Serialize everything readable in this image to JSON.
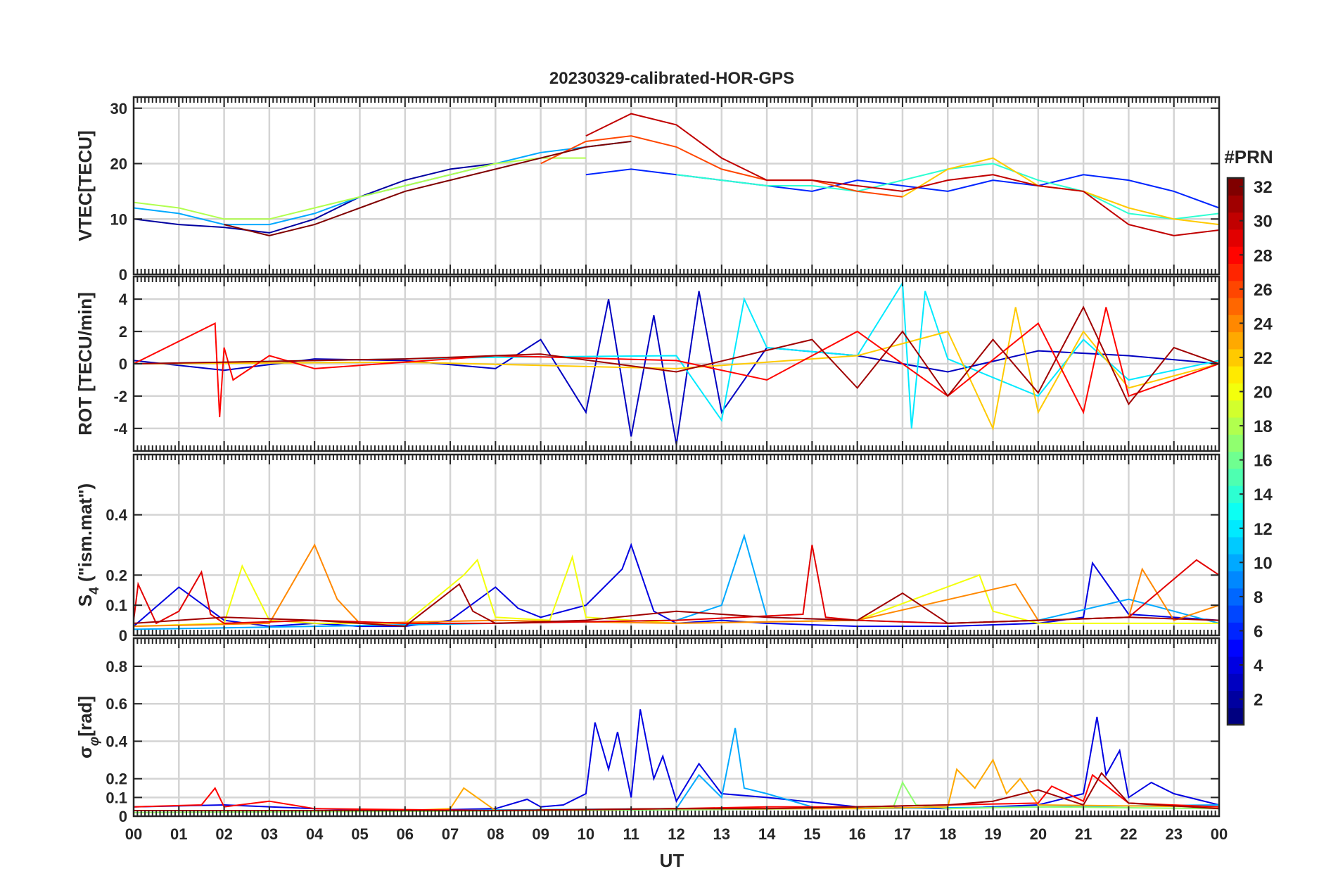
{
  "chart_data": {
    "type": "line",
    "title": "20230329-calibrated-HOR-GPS",
    "xlabel": "UT",
    "x_ticks": [
      "00",
      "01",
      "02",
      "03",
      "04",
      "05",
      "06",
      "07",
      "08",
      "09",
      "10",
      "11",
      "12",
      "13",
      "14",
      "15",
      "16",
      "17",
      "18",
      "19",
      "20",
      "21",
      "22",
      "23",
      "00"
    ],
    "xlim": [
      0,
      24
    ],
    "colorbar": {
      "label": "#PRN",
      "ticks": [
        "2",
        "4",
        "6",
        "8",
        "10",
        "12",
        "14",
        "16",
        "18",
        "20",
        "22",
        "24",
        "26",
        "28",
        "30",
        "32"
      ],
      "range": [
        1,
        32
      ],
      "colormap": "jet"
    },
    "panels": [
      {
        "id": "vtec",
        "ylabel": "VTEC[TECU]",
        "ylim": [
          0,
          32
        ],
        "y_ticks": [
          0,
          10,
          20,
          30
        ],
        "y_tick_labels": [
          "0",
          "10",
          "20",
          "30"
        ],
        "series": [
          {
            "prn": 2,
            "x": [
              0,
              1,
              2,
              3,
              4,
              5,
              6,
              7,
              8
            ],
            "y": [
              10,
              9,
              8.5,
              7.5,
              10,
              14,
              17,
              19,
              20
            ]
          },
          {
            "prn": 6,
            "x": [
              10,
              11,
              12,
              13,
              14,
              15,
              16,
              17,
              18,
              19,
              20,
              21,
              22,
              23,
              24
            ],
            "y": [
              18,
              19,
              18,
              17,
              16,
              15,
              17,
              16,
              15,
              17,
              16,
              18,
              17,
              15,
              12
            ]
          },
          {
            "prn": 10,
            "x": [
              0,
              1,
              2,
              3,
              4,
              5,
              6,
              7,
              8,
              9,
              10,
              11
            ],
            "y": [
              12,
              11,
              9,
              9,
              11,
              14,
              16,
              18,
              20,
              22,
              23,
              24
            ]
          },
          {
            "prn": 14,
            "x": [
              12,
              13,
              14,
              15,
              16,
              17,
              18,
              19,
              20,
              21,
              22,
              23,
              24
            ],
            "y": [
              18,
              17,
              16,
              16,
              15,
              17,
              19,
              20,
              17,
              15,
              11,
              10,
              11
            ]
          },
          {
            "prn": 18,
            "x": [
              0,
              1,
              2,
              3,
              4,
              5,
              6,
              7,
              8,
              9,
              10
            ],
            "y": [
              13,
              12,
              10,
              10,
              12,
              14,
              16,
              18,
              20,
              21,
              21
            ]
          },
          {
            "prn": 22,
            "x": [
              17,
              18,
              19,
              20,
              21,
              22,
              23,
              24
            ],
            "y": [
              14,
              19,
              21,
              16,
              15,
              12,
              10,
              9
            ]
          },
          {
            "prn": 26,
            "x": [
              9,
              10,
              11,
              12,
              13,
              14,
              15,
              16,
              17
            ],
            "y": [
              20,
              24,
              25,
              23,
              19,
              17,
              17,
              15,
              14
            ]
          },
          {
            "prn": 30,
            "x": [
              10,
              11,
              12,
              13,
              14,
              15,
              16,
              17,
              18,
              19,
              20,
              21,
              22,
              23,
              24
            ],
            "y": [
              25,
              29,
              27,
              21,
              17,
              17,
              16,
              15,
              17,
              18,
              16,
              15,
              9,
              7,
              8
            ]
          },
          {
            "prn": 32,
            "x": [
              2,
              3,
              4,
              5,
              6,
              7,
              8,
              9,
              10,
              11
            ],
            "y": [
              9,
              7,
              9,
              12,
              15,
              17,
              19,
              21,
              23,
              24
            ]
          }
        ]
      },
      {
        "id": "rot",
        "ylabel": "ROT [TECU/min]",
        "ylim": [
          -5.4,
          5.4
        ],
        "y_ticks": [
          -4,
          -2,
          0,
          2,
          4
        ],
        "y_tick_labels": [
          "-4",
          "-2",
          "0",
          "2",
          "4"
        ],
        "series": [
          {
            "prn": 3,
            "x": [
              0,
              2,
              4,
              6,
              8,
              9,
              10,
              10.5,
              11,
              11.5,
              12,
              12.5,
              13,
              14,
              16,
              18,
              20,
              22,
              24
            ],
            "y": [
              0.2,
              -0.4,
              0.3,
              0.2,
              -0.3,
              1.5,
              -3,
              4,
              -4.5,
              3,
              -5,
              4.5,
              -3,
              1,
              0.5,
              -0.5,
              0.8,
              0.5,
              0
            ]
          },
          {
            "prn": 12,
            "x": [
              0,
              4,
              8,
              12,
              13,
              13.5,
              14,
              16,
              17,
              17.2,
              17.5,
              18,
              20,
              21,
              22,
              24
            ],
            "y": [
              0,
              0.2,
              0.4,
              0.5,
              -3.5,
              4,
              1,
              0.5,
              5,
              -4,
              4.5,
              0.3,
              -2,
              1.5,
              -1,
              0.2
            ]
          },
          {
            "prn": 22,
            "x": [
              0,
              6,
              12,
              16,
              18,
              19,
              19.5,
              20,
              21,
              22,
              24
            ],
            "y": [
              0,
              0.1,
              -0.3,
              0.5,
              2,
              -4,
              3.5,
              -3,
              2,
              -1.5,
              0
            ]
          },
          {
            "prn": 28,
            "x": [
              0,
              1.8,
              1.9,
              2,
              2.2,
              3,
              4,
              8,
              12,
              14,
              16,
              18,
              20,
              21,
              21.5,
              22,
              24
            ],
            "y": [
              0,
              2.5,
              -3.3,
              1,
              -1,
              0.5,
              -0.3,
              0.5,
              0.2,
              -1,
              2,
              -2,
              2.5,
              -3,
              3.5,
              -2,
              0
            ]
          },
          {
            "prn": 31,
            "x": [
              0,
              6,
              9,
              12,
              15,
              16,
              17,
              18,
              19,
              20,
              21,
              22,
              23,
              24
            ],
            "y": [
              0,
              0.3,
              0.6,
              -0.5,
              1.5,
              -1.5,
              2,
              -2,
              1.5,
              -1.8,
              3.5,
              -2.5,
              1,
              0
            ]
          }
        ]
      },
      {
        "id": "s4",
        "ylabel": "S_4 (\"ism.mat\")",
        "ylabel_main": "S",
        "ylabel_sub": "4",
        "ylabel_rest": " (\"ism.mat\")",
        "ylim": [
          0,
          0.6
        ],
        "y_ticks": [
          0,
          0.1,
          0.2,
          0.4
        ],
        "y_tick_labels": [
          "0",
          "0.1",
          "0.2",
          "0.4"
        ],
        "series": [
          {
            "prn": 4,
            "x": [
              0,
              1,
              2,
              3,
              4,
              5,
              6,
              7,
              8,
              8.5,
              9,
              10,
              10.8,
              11,
              11.5,
              12,
              13,
              14,
              16,
              18,
              20,
              21,
              21.2,
              22,
              24
            ],
            "y": [
              0.03,
              0.16,
              0.05,
              0.03,
              0.04,
              0.03,
              0.03,
              0.05,
              0.16,
              0.09,
              0.06,
              0.1,
              0.22,
              0.3,
              0.08,
              0.04,
              0.05,
              0.04,
              0.03,
              0.03,
              0.04,
              0.06,
              0.24,
              0.07,
              0.05
            ]
          },
          {
            "prn": 10,
            "x": [
              0,
              4,
              8,
              12,
              13,
              13.5,
              14,
              16,
              18,
              20,
              22,
              23,
              24
            ],
            "y": [
              0.02,
              0.03,
              0.04,
              0.05,
              0.1,
              0.33,
              0.06,
              0.05,
              0.04,
              0.05,
              0.12,
              0.08,
              0.04
            ]
          },
          {
            "prn": 20,
            "x": [
              0,
              2,
              2.4,
              3,
              4,
              6,
              7.3,
              7.6,
              8,
              9.2,
              9.7,
              10,
              12,
              16,
              18.7,
              19,
              20,
              24
            ],
            "y": [
              0.03,
              0.04,
              0.23,
              0.05,
              0.04,
              0.04,
              0.2,
              0.25,
              0.06,
              0.05,
              0.26,
              0.06,
              0.04,
              0.05,
              0.2,
              0.08,
              0.04,
              0.04
            ]
          },
          {
            "prn": 24,
            "x": [
              0,
              3,
              4,
              4.5,
              5,
              8,
              12,
              16,
              19.5,
              20,
              22,
              22.3,
              23,
              24
            ],
            "y": [
              0.03,
              0.04,
              0.3,
              0.12,
              0.04,
              0.05,
              0.04,
              0.05,
              0.17,
              0.05,
              0.06,
              0.22,
              0.05,
              0.1
            ]
          },
          {
            "prn": 29,
            "x": [
              0,
              0.1,
              0.5,
              1,
              1.5,
              1.7,
              2,
              4,
              6,
              8,
              12,
              14.8,
              15,
              15.3,
              16,
              18,
              20,
              22,
              23.5,
              24
            ],
            "y": [
              0.05,
              0.17,
              0.04,
              0.08,
              0.21,
              0.07,
              0.04,
              0.05,
              0.04,
              0.04,
              0.05,
              0.07,
              0.3,
              0.06,
              0.05,
              0.04,
              0.05,
              0.06,
              0.25,
              0.2
            ]
          },
          {
            "prn": 31,
            "x": [
              0,
              2,
              4,
              6,
              7.2,
              7.5,
              8,
              10,
              12,
              14,
              16,
              17,
              18,
              20,
              22,
              24
            ],
            "y": [
              0.04,
              0.06,
              0.05,
              0.03,
              0.17,
              0.08,
              0.04,
              0.05,
              0.08,
              0.06,
              0.05,
              0.14,
              0.04,
              0.05,
              0.06,
              0.05
            ]
          }
        ]
      },
      {
        "id": "sigma",
        "ylabel": "σ_φ [rad]",
        "ylabel_main": "σ",
        "ylabel_sub": "φ",
        "ylabel_rest": "[rad]",
        "ylim": [
          0,
          0.95
        ],
        "y_ticks": [
          0,
          0.1,
          0.2,
          0.4,
          0.6,
          0.8
        ],
        "y_tick_labels": [
          "0",
          "0.1",
          "0.2",
          "0.4",
          "0.6",
          "0.8"
        ],
        "series": [
          {
            "prn": 4,
            "x": [
              0,
              2,
              4,
              6,
              8,
              8.7,
              9,
              9.5,
              10,
              10.2,
              10.5,
              10.7,
              11,
              11.2,
              11.5,
              11.7,
              12,
              12.5,
              13,
              14,
              16,
              18,
              20,
              21,
              21.3,
              21.5,
              21.8,
              22,
              22.5,
              23,
              24
            ],
            "y": [
              0.05,
              0.06,
              0.04,
              0.03,
              0.04,
              0.09,
              0.05,
              0.06,
              0.12,
              0.5,
              0.25,
              0.45,
              0.1,
              0.57,
              0.2,
              0.32,
              0.08,
              0.28,
              0.12,
              0.1,
              0.05,
              0.04,
              0.06,
              0.12,
              0.53,
              0.22,
              0.35,
              0.1,
              0.18,
              0.12,
              0.06
            ]
          },
          {
            "prn": 10,
            "x": [
              0,
              6,
              12,
              12.5,
              13,
              13.3,
              13.5,
              14,
              15,
              16,
              20,
              24
            ],
            "y": [
              0.03,
              0.03,
              0.04,
              0.22,
              0.1,
              0.47,
              0.15,
              0.12,
              0.05,
              0.04,
              0.05,
              0.06
            ]
          },
          {
            "prn": 17,
            "x": [
              0,
              10,
              15,
              16.8,
              17,
              17.3,
              18,
              20,
              24
            ],
            "y": [
              0.02,
              0.03,
              0.04,
              0.05,
              0.18,
              0.06,
              0.04,
              0.05,
              0.04
            ]
          },
          {
            "prn": 23,
            "x": [
              0,
              6,
              7,
              7.3,
              8,
              12,
              16,
              18,
              18.2,
              18.6,
              19,
              19.3,
              19.6,
              20,
              24
            ],
            "y": [
              0.03,
              0.03,
              0.04,
              0.15,
              0.03,
              0.04,
              0.04,
              0.05,
              0.25,
              0.15,
              0.3,
              0.12,
              0.2,
              0.06,
              0.05
            ]
          },
          {
            "prn": 28,
            "x": [
              0,
              1.5,
              1.8,
              2,
              3,
              4,
              8,
              12,
              14,
              16,
              18,
              20,
              20.3,
              21,
              21.2,
              22,
              24
            ],
            "y": [
              0.05,
              0.06,
              0.15,
              0.05,
              0.08,
              0.04,
              0.03,
              0.04,
              0.05,
              0.05,
              0.06,
              0.07,
              0.16,
              0.08,
              0.22,
              0.07,
              0.05
            ]
          },
          {
            "prn": 31,
            "x": [
              0,
              4,
              8,
              12,
              14,
              16,
              18,
              19,
              20,
              21,
              21.4,
              22,
              24
            ],
            "y": [
              0.03,
              0.03,
              0.03,
              0.04,
              0.04,
              0.05,
              0.06,
              0.08,
              0.14,
              0.06,
              0.23,
              0.07,
              0.04
            ]
          }
        ]
      }
    ]
  }
}
